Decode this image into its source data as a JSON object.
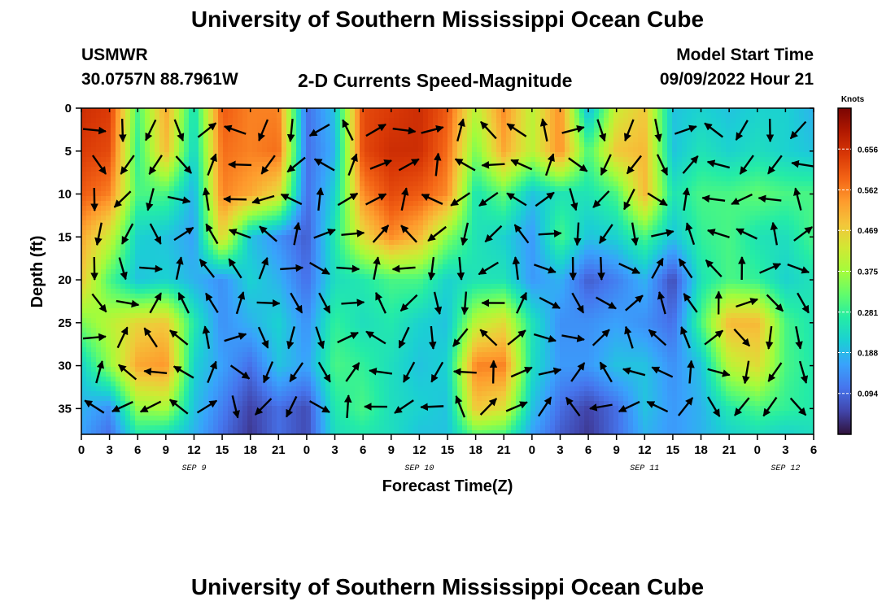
{
  "page": {
    "title": "University of Southern Mississippi Ocean Cube",
    "station": "USMWR",
    "coords": "30.0757N  88.7961W",
    "subtitle": "2-D Currents Speed-Magnitude",
    "model_start_label": "Model Start Time",
    "model_start_value": "09/09/2022 Hour 21",
    "footer_title": "University of Southern Mississippi Ocean Cube"
  },
  "chart_data": {
    "type": "heatmap",
    "xlabel": "Forecast Time(Z)",
    "ylabel": "Depth (ft)",
    "x_tick_labels": [
      "0",
      "3",
      "6",
      "9",
      "12",
      "15",
      "18",
      "21",
      "0",
      "3",
      "6",
      "9",
      "12",
      "15",
      "18",
      "21",
      "0",
      "3",
      "6",
      "9",
      "12",
      "15",
      "18",
      "21",
      "0",
      "3",
      "6"
    ],
    "x_range_hours": [
      0,
      78
    ],
    "date_labels": [
      {
        "label": "SEP 9",
        "hour": 12
      },
      {
        "label": "SEP 10",
        "hour": 36
      },
      {
        "label": "SEP 11",
        "hour": 60
      },
      {
        "label": "SEP 12",
        "hour": 75
      }
    ],
    "y_ticks": [
      0,
      5,
      10,
      15,
      20,
      25,
      30,
      35
    ],
    "y_tick_labels": [
      "0",
      "5",
      "10",
      "15",
      "20",
      "25",
      "30",
      "35"
    ],
    "y_range": [
      0,
      38
    ],
    "y_inverted": true,
    "colorbar": {
      "unit": "Knots",
      "range": [
        0,
        0.75
      ],
      "ticks": [
        0.094,
        0.188,
        0.281,
        0.375,
        0.469,
        0.562,
        0.656
      ],
      "tick_labels": [
        "0.094",
        "0.188",
        "0.281",
        "0.375",
        "0.469",
        "0.562",
        "0.656"
      ],
      "colors": [
        "#30123b",
        "#4145ab",
        "#4675ed",
        "#39a2fc",
        "#1bcfd4",
        "#24eca6",
        "#61fc6c",
        "#a4fc3b",
        "#d1e834",
        "#f3c63a",
        "#fe9b2d",
        "#f36315",
        "#d93806",
        "#b11901",
        "#7a0402"
      ]
    },
    "speed_field": {
      "times": [
        0,
        3,
        6,
        9,
        12,
        15,
        18,
        21,
        24,
        27,
        30,
        33,
        36,
        39,
        42,
        45,
        48,
        51,
        54,
        57,
        60,
        63,
        66,
        69,
        72,
        75,
        78
      ],
      "depths": [
        0,
        5,
        10,
        15,
        20,
        25,
        30,
        35,
        38
      ],
      "values": [
        [
          0.66,
          0.64,
          0.3,
          0.52,
          0.24,
          0.6,
          0.56,
          0.56,
          0.1,
          0.2,
          0.62,
          0.64,
          0.66,
          0.6,
          0.4,
          0.55,
          0.4,
          0.55,
          0.18,
          0.42,
          0.48,
          0.2,
          0.22,
          0.2,
          0.22,
          0.22,
          0.18
        ],
        [
          0.64,
          0.62,
          0.28,
          0.5,
          0.22,
          0.58,
          0.56,
          0.58,
          0.1,
          0.18,
          0.62,
          0.66,
          0.66,
          0.58,
          0.34,
          0.52,
          0.4,
          0.55,
          0.3,
          0.48,
          0.5,
          0.2,
          0.25,
          0.22,
          0.24,
          0.22,
          0.2
        ],
        [
          0.6,
          0.56,
          0.3,
          0.3,
          0.18,
          0.56,
          0.52,
          0.45,
          0.1,
          0.22,
          0.55,
          0.62,
          0.6,
          0.55,
          0.25,
          0.32,
          0.2,
          0.25,
          0.25,
          0.3,
          0.5,
          0.25,
          0.3,
          0.3,
          0.32,
          0.3,
          0.3
        ],
        [
          0.52,
          0.42,
          0.22,
          0.2,
          0.16,
          0.46,
          0.2,
          0.14,
          0.08,
          0.26,
          0.45,
          0.55,
          0.5,
          0.35,
          0.25,
          0.22,
          0.15,
          0.3,
          0.2,
          0.22,
          0.3,
          0.2,
          0.28,
          0.3,
          0.25,
          0.24,
          0.3
        ],
        [
          0.48,
          0.3,
          0.2,
          0.22,
          0.18,
          0.14,
          0.22,
          0.18,
          0.1,
          0.24,
          0.26,
          0.3,
          0.3,
          0.22,
          0.25,
          0.25,
          0.15,
          0.18,
          0.08,
          0.12,
          0.18,
          0.06,
          0.25,
          0.3,
          0.28,
          0.22,
          0.25
        ],
        [
          0.34,
          0.4,
          0.46,
          0.48,
          0.26,
          0.14,
          0.18,
          0.22,
          0.14,
          0.28,
          0.24,
          0.26,
          0.22,
          0.2,
          0.4,
          0.45,
          0.25,
          0.14,
          0.14,
          0.16,
          0.14,
          0.1,
          0.3,
          0.5,
          0.5,
          0.3,
          0.25
        ],
        [
          0.22,
          0.36,
          0.52,
          0.54,
          0.22,
          0.16,
          0.1,
          0.2,
          0.16,
          0.3,
          0.28,
          0.24,
          0.2,
          0.22,
          0.56,
          0.56,
          0.24,
          0.15,
          0.15,
          0.2,
          0.2,
          0.14,
          0.2,
          0.4,
          0.45,
          0.3,
          0.26
        ],
        [
          0.18,
          0.14,
          0.36,
          0.38,
          0.2,
          0.12,
          0.05,
          0.1,
          0.06,
          0.26,
          0.3,
          0.24,
          0.22,
          0.2,
          0.48,
          0.44,
          0.2,
          0.1,
          0.05,
          0.1,
          0.2,
          0.15,
          0.18,
          0.26,
          0.3,
          0.28,
          0.26
        ],
        [
          0.16,
          0.1,
          0.26,
          0.24,
          0.18,
          0.1,
          0.04,
          0.1,
          0.06,
          0.24,
          0.26,
          0.24,
          0.2,
          0.2,
          0.32,
          0.3,
          0.16,
          0.08,
          0.04,
          0.1,
          0.18,
          0.15,
          0.18,
          0.22,
          0.24,
          0.22,
          0.24
        ]
      ]
    }
  }
}
